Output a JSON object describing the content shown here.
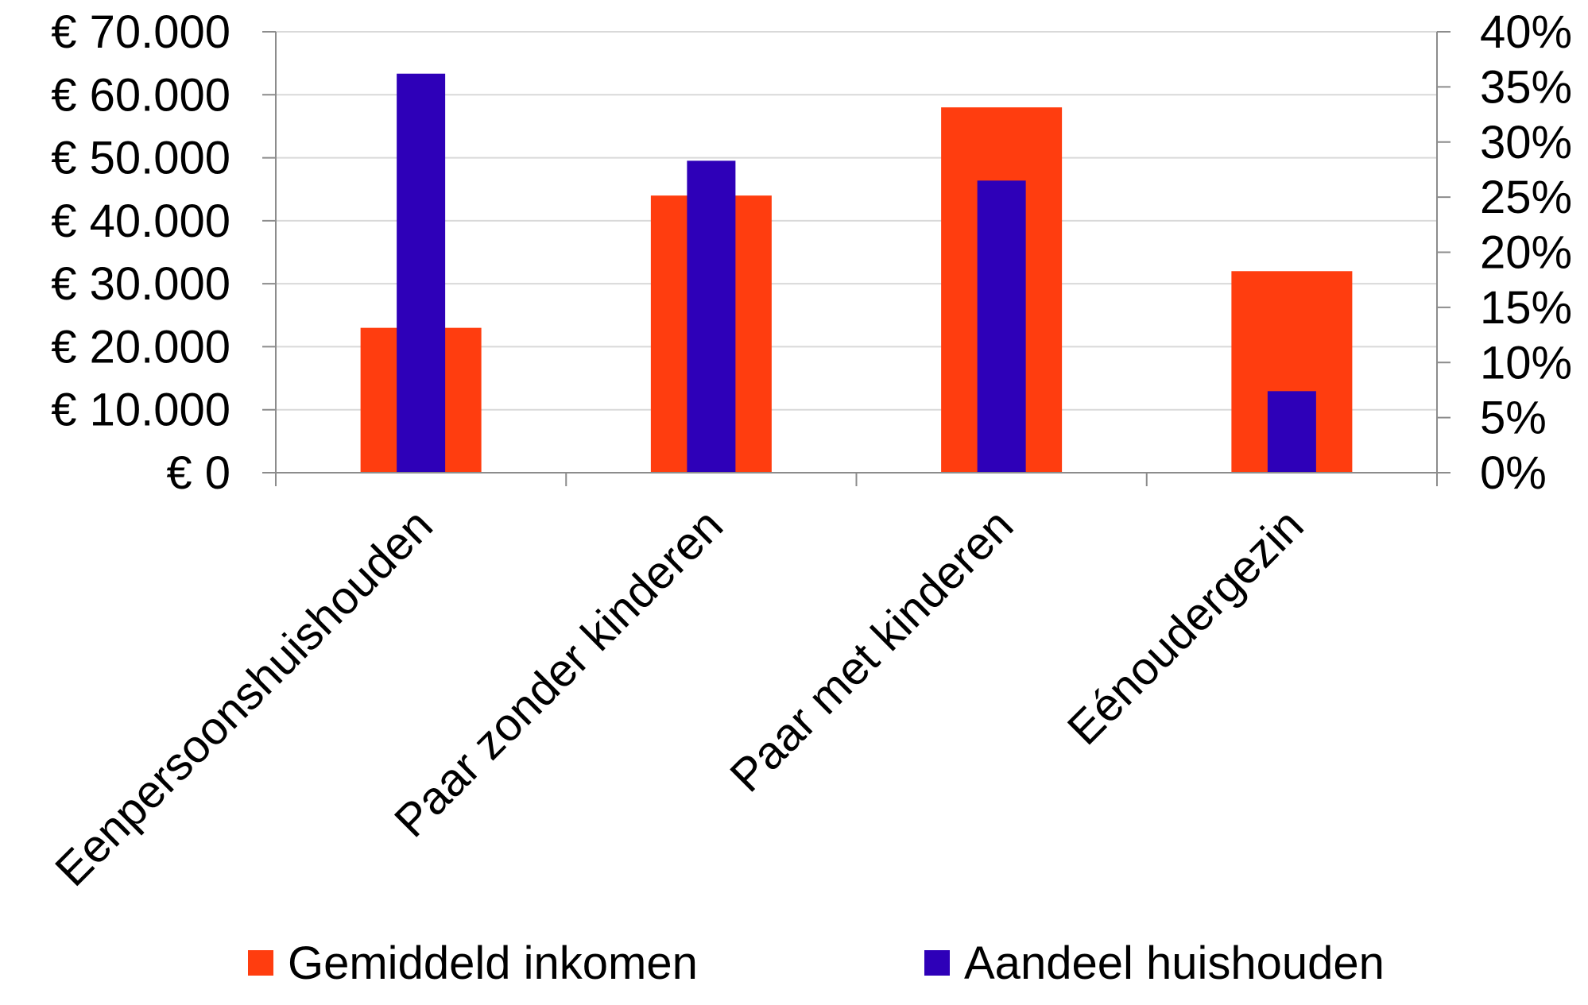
{
  "chart_data": {
    "type": "bar",
    "categories": [
      "Eenpersoonshuishouden",
      "Paar zonder kinderen",
      "Paar met kinderen",
      "Eénoudergezin"
    ],
    "series": [
      {
        "name": "Gemiddeld inkomen",
        "axis": "left",
        "color": "#ff3d0f",
        "values": [
          23000,
          44000,
          58000,
          32000
        ]
      },
      {
        "name": "Aandeel huishouden",
        "axis": "right",
        "color": "#2e00b8",
        "values": [
          36.2,
          28.3,
          26.5,
          7.4
        ]
      }
    ],
    "y_left": {
      "ylim": [
        0,
        70000
      ],
      "ticks": [
        0,
        10000,
        20000,
        30000,
        40000,
        50000,
        60000,
        70000
      ],
      "tick_labels": [
        "€ 0",
        "€ 10.000",
        "€ 20.000",
        "€ 30.000",
        "€ 40.000",
        "€ 50.000",
        "€ 60.000",
        "€ 70.000"
      ]
    },
    "y_right": {
      "ylim": [
        0,
        40
      ],
      "ticks": [
        0,
        5,
        10,
        15,
        20,
        25,
        30,
        35,
        40
      ],
      "tick_labels": [
        "0%",
        "5%",
        "10%",
        "15%",
        "20%",
        "25%",
        "30%",
        "35%",
        "40%"
      ]
    },
    "title": "",
    "xlabel": "",
    "ylabel": "",
    "grid": true,
    "legend_position": "bottom"
  }
}
